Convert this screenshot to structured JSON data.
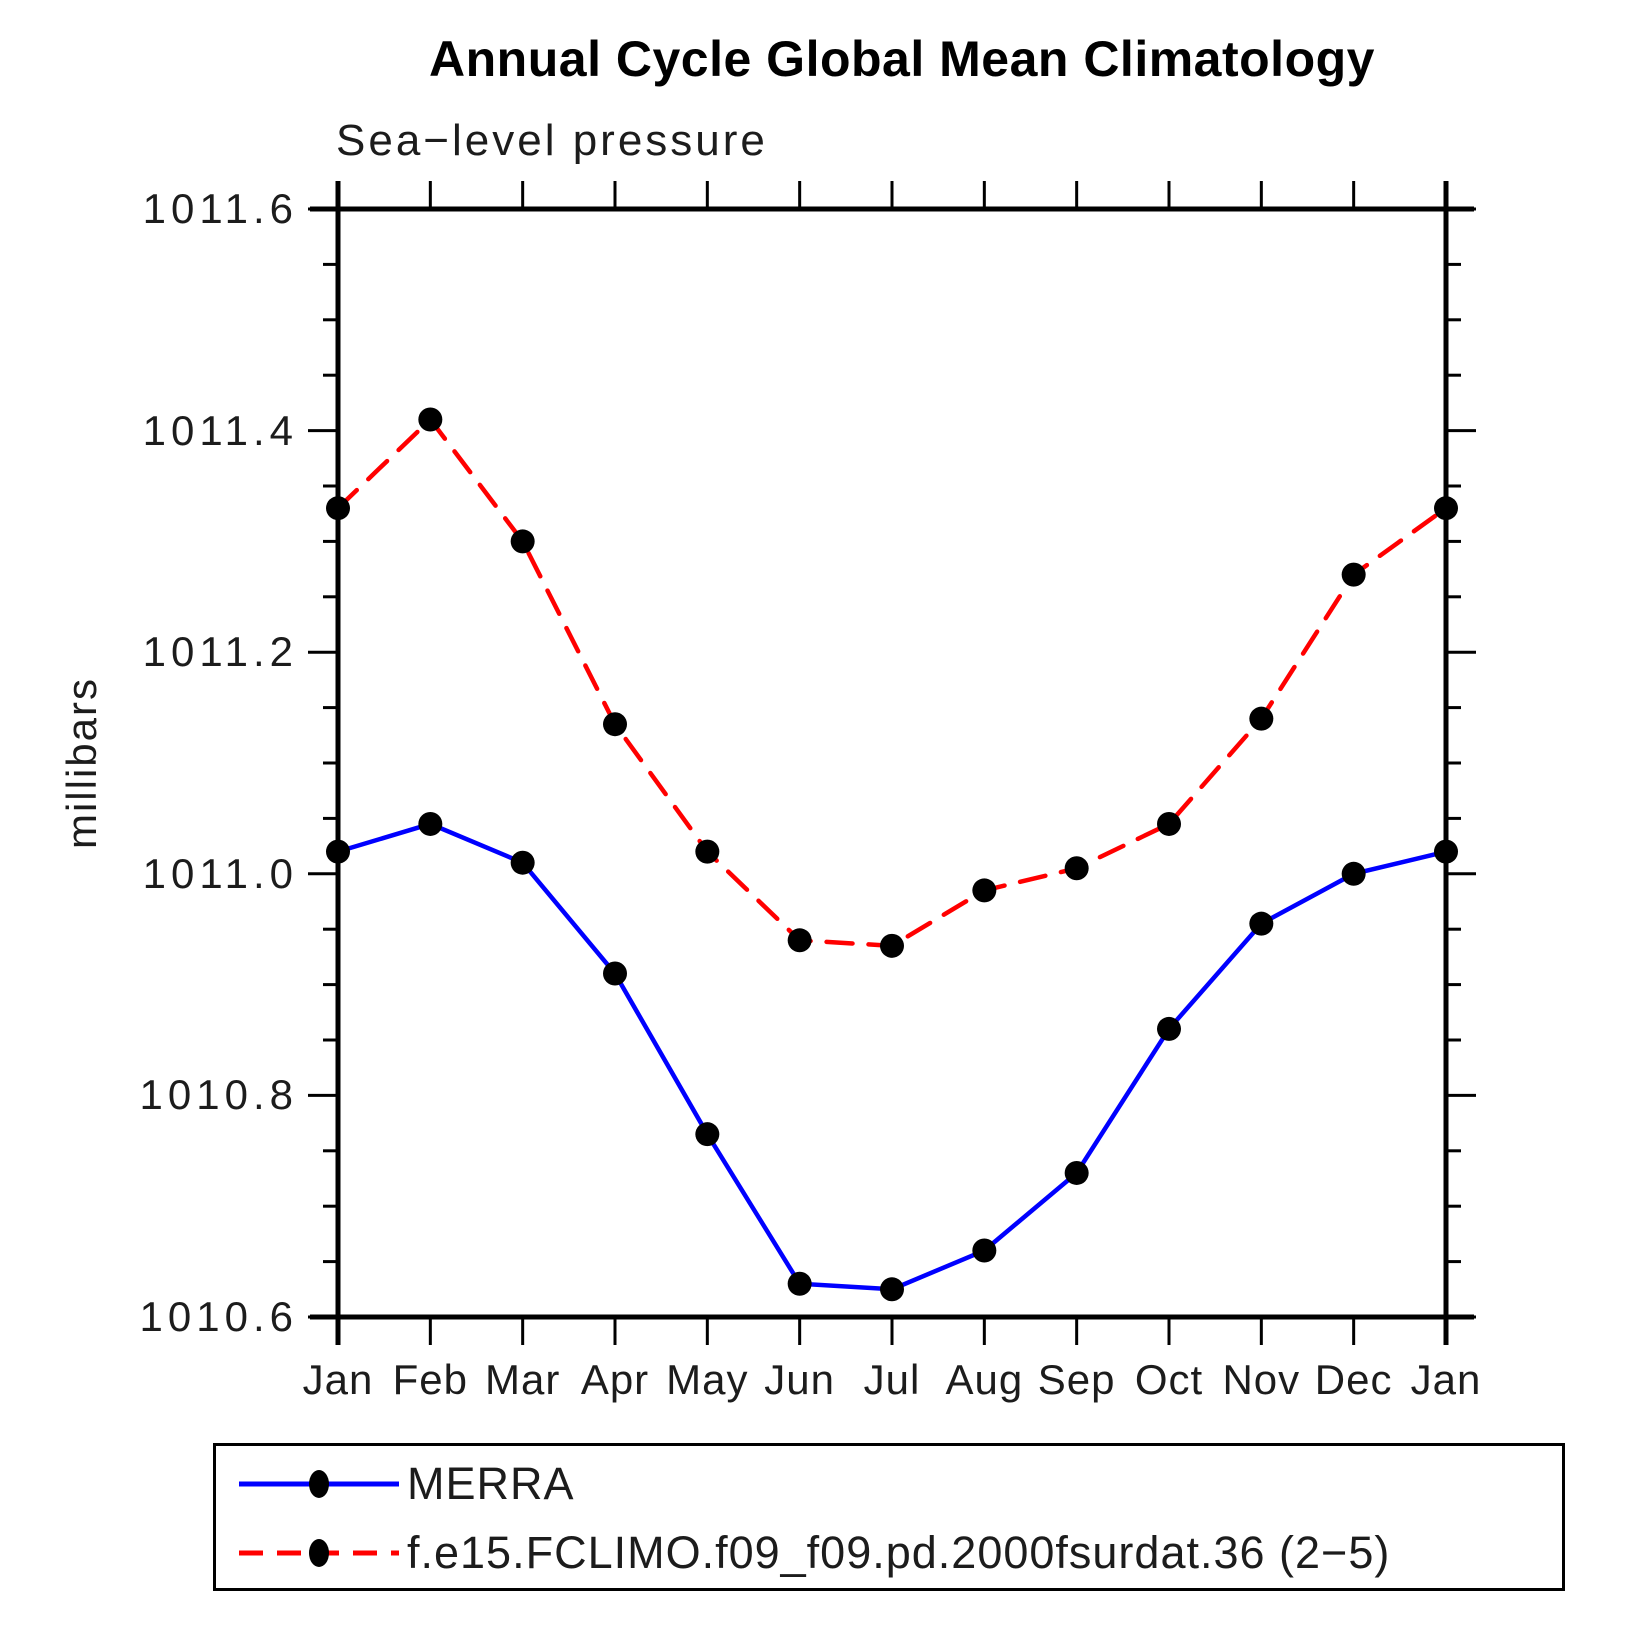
{
  "title": "Annual Cycle Global Mean Climatology",
  "subtitle": "Sea−level pressure",
  "chart_data": {
    "type": "line",
    "title": "Annual Cycle Global Mean Climatology",
    "subtitle": "Sea−level pressure",
    "xlabel": "",
    "ylabel": "millibars",
    "categories": [
      "Jan",
      "Feb",
      "Mar",
      "Apr",
      "May",
      "Jun",
      "Jul",
      "Aug",
      "Sep",
      "Oct",
      "Nov",
      "Dec",
      "Jan"
    ],
    "ylim": [
      1010.6,
      1011.6
    ],
    "ytick_step": 0.2,
    "yminor_step": 0.05,
    "yticks": [
      "1011.6",
      "1011.4",
      "1011.2",
      "1011.0",
      "1010.8",
      "1010.6"
    ],
    "grid": "off",
    "legend_position": "bottom-left-box",
    "marker": "filled-circle",
    "marker_color": "#000000",
    "axis_color": "#000000",
    "series": [
      {
        "name": "MERRA",
        "color": "#0000ff",
        "line_style": "solid",
        "values": [
          1011.02,
          1011.045,
          1011.01,
          1010.91,
          1010.765,
          1010.63,
          1010.625,
          1010.66,
          1010.73,
          1010.86,
          1010.955,
          1011.0,
          1011.02
        ]
      },
      {
        "name": "f.e15.FCLIMO.f09_f09.pd.2000fsurdat.36 (2−5)",
        "color": "#ff0000",
        "line_style": "dashed",
        "values": [
          1011.33,
          1011.41,
          1011.3,
          1011.135,
          1011.02,
          1010.94,
          1010.935,
          1010.985,
          1011.005,
          1011.045,
          1011.14,
          1011.27,
          1011.33
        ]
      }
    ]
  }
}
